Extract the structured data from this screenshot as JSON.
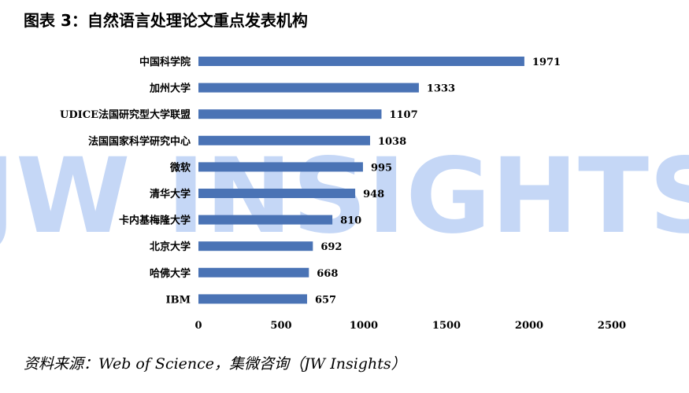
{
  "title": "图表 3：自然语言处理论文重点发表机构",
  "source": "资料来源：Web of Science，集微咨询（JW Insights）",
  "watermark": "JW INSIGHTS",
  "colors": {
    "bar": "#4a73b5",
    "watermark": "#5b8fe8"
  },
  "chart_data": {
    "type": "bar",
    "orientation": "horizontal",
    "categories": [
      "中国科学院",
      "加州大学",
      "UDICE法国研究型大学联盟",
      "法国国家科学研究中心",
      "微软",
      "清华大学",
      "卡内基梅隆大学",
      "北京大学",
      "哈佛大学",
      "IBM"
    ],
    "values": [
      1971,
      1333,
      1107,
      1038,
      995,
      948,
      810,
      692,
      668,
      657
    ],
    "xlim": [
      0,
      2500
    ],
    "xticks": [
      0,
      500,
      1000,
      1500,
      2000,
      2500
    ],
    "grid": false,
    "legend": "none"
  }
}
